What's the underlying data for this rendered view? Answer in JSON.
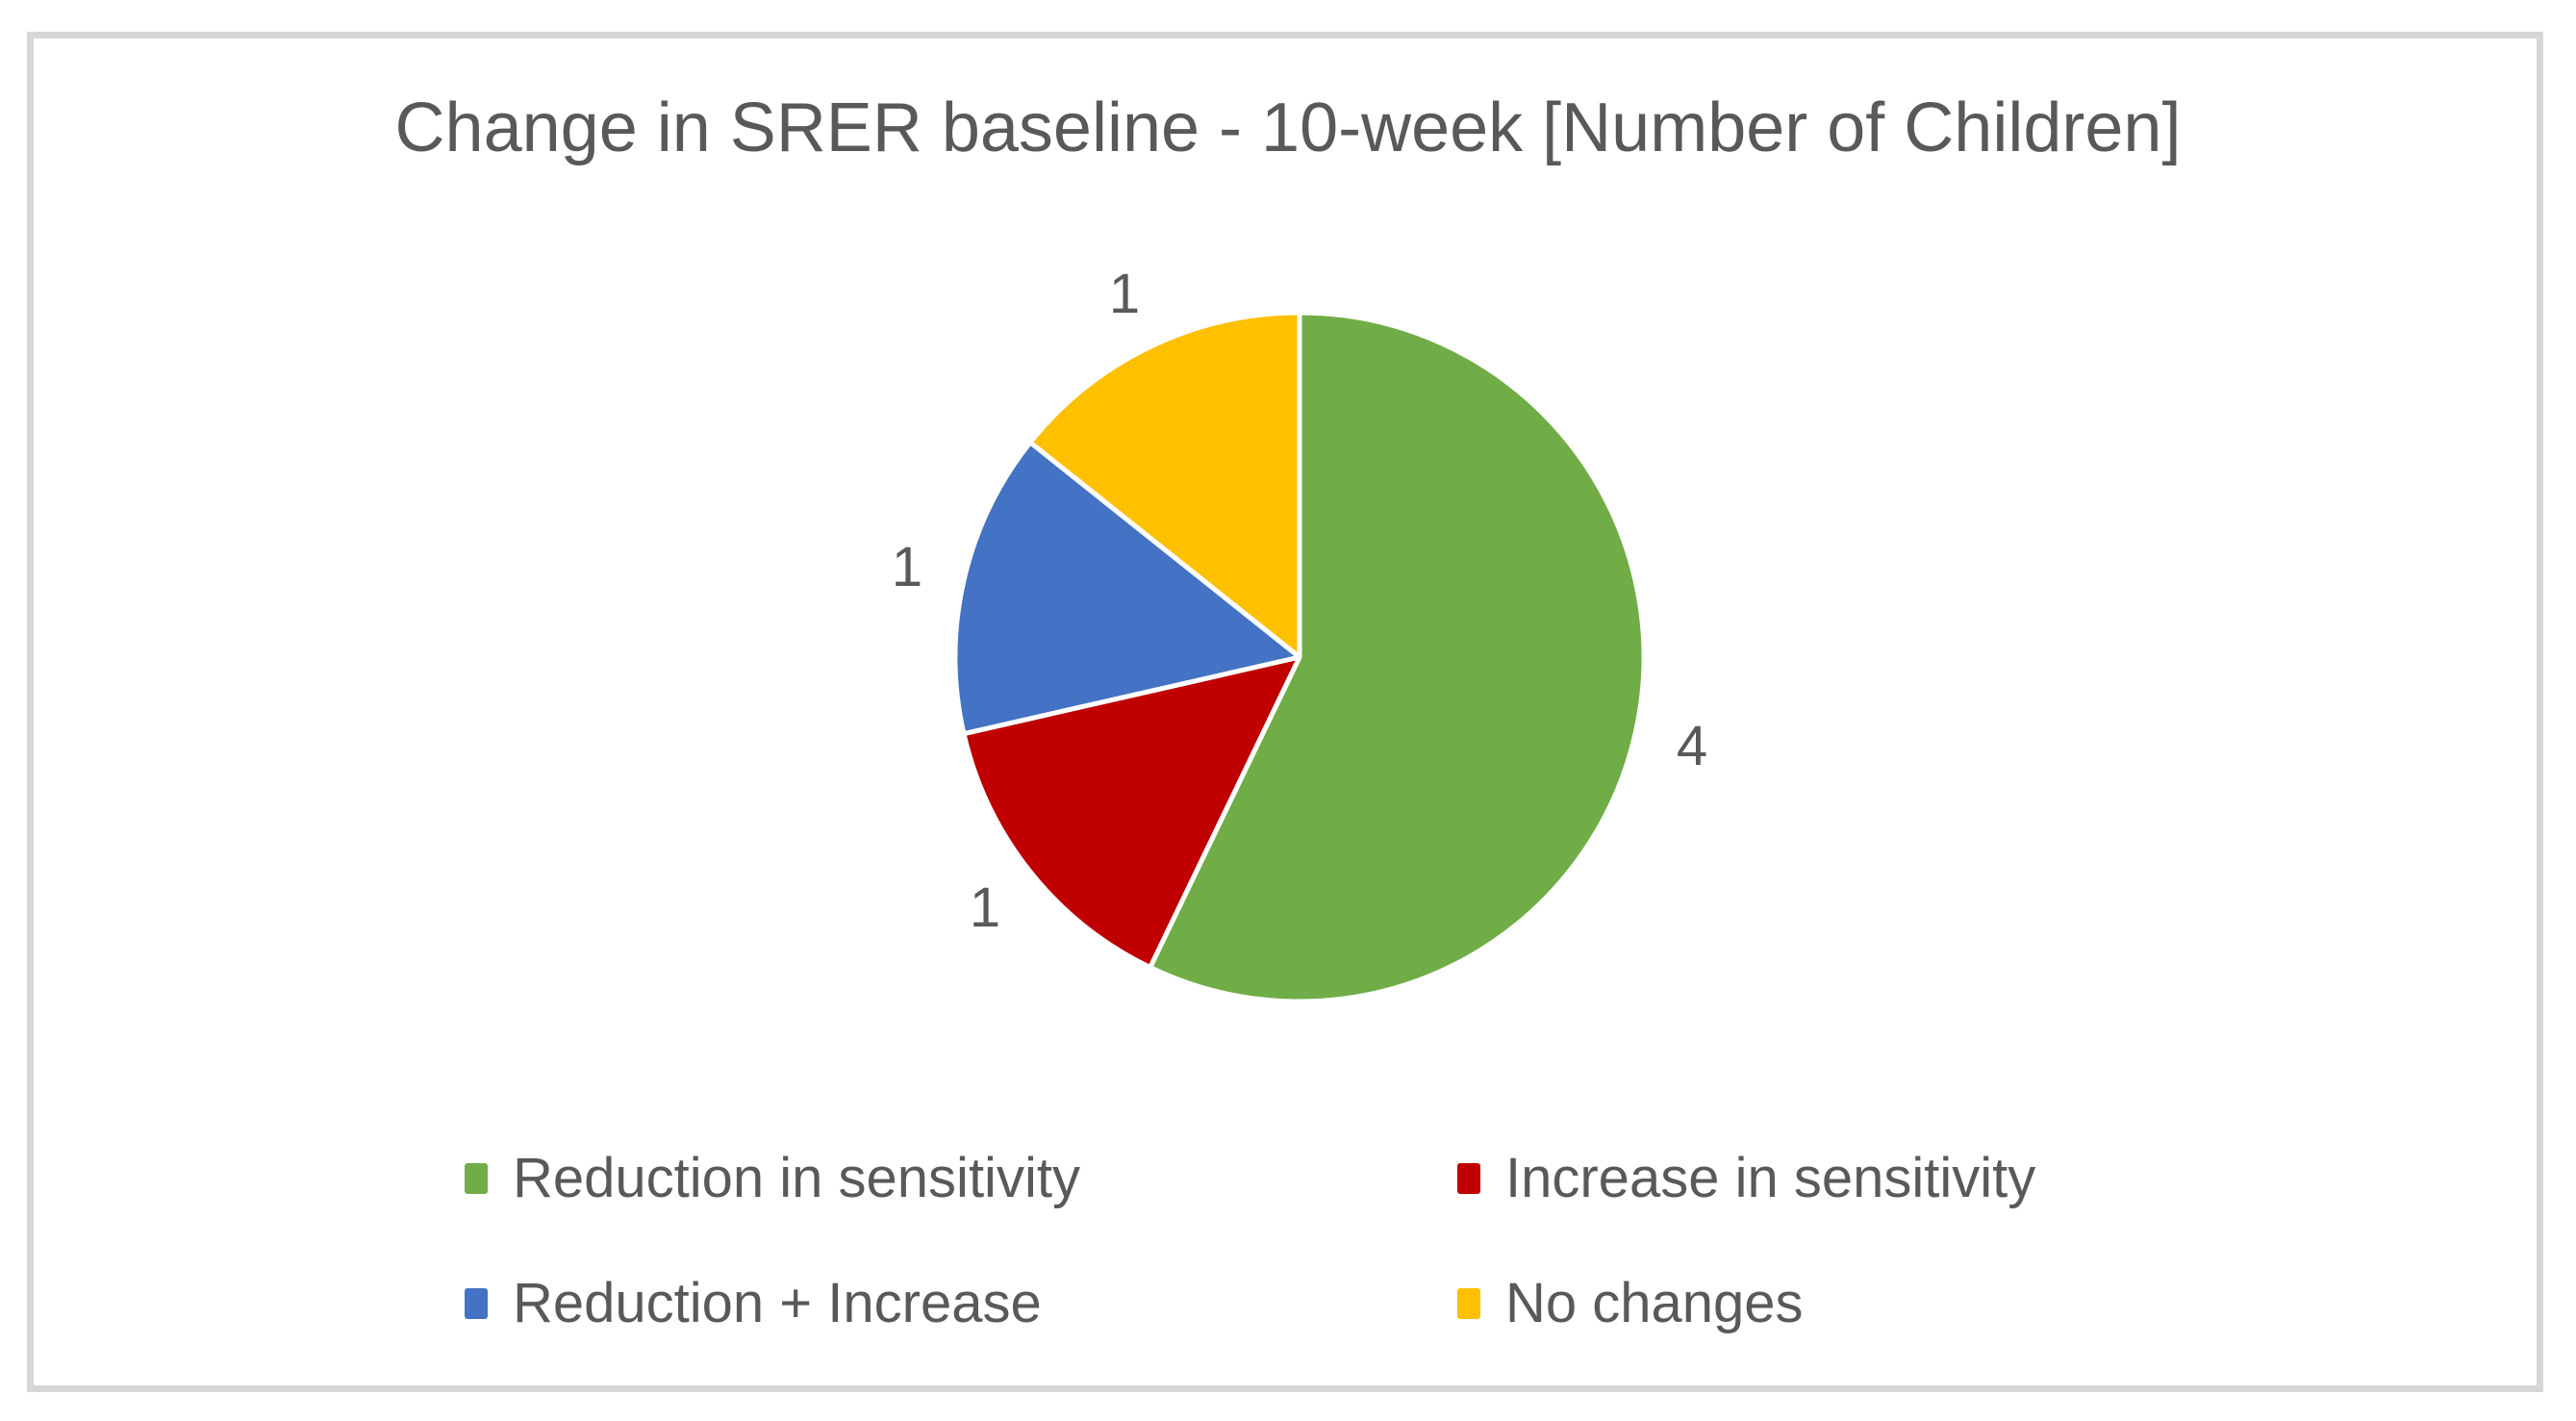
{
  "chart_data": {
    "type": "pie",
    "title": "Change in SRER baseline - 10-week [Number of Children]",
    "labels": [
      "Reduction in sensitivity",
      "Increase in sensitivity",
      "Reduction + Increase",
      "No changes"
    ],
    "values": [
      4,
      1,
      1,
      1
    ],
    "data_labels": [
      "4",
      "1",
      "1",
      "1"
    ],
    "colors": [
      "#70AD47",
      "#C00000",
      "#4472C4",
      "#FFC000"
    ],
    "total": 7,
    "start_angle_deg": 0,
    "direction": "clockwise",
    "slice_border_color": "#FFFFFF",
    "legend_position": "bottom",
    "legend_columns": 2,
    "text_color": "#595959",
    "frame_border_color": "#D6D6D6",
    "background_color": "#FFFFFF"
  }
}
